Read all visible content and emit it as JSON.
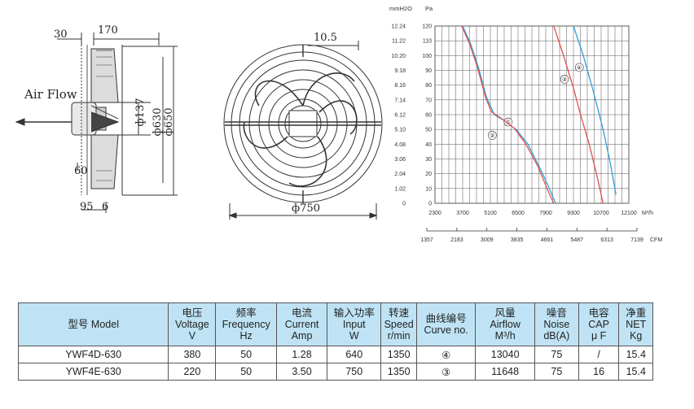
{
  "drawing": {
    "side_view": {
      "dims": [
        "30",
        "170",
        "Air Flow",
        "ф137",
        "ф630",
        "ф650",
        "60",
        "95",
        "6"
      ]
    },
    "front_view": {
      "dims": [
        "10.5",
        "ф750"
      ]
    }
  },
  "chart_data": {
    "type": "line",
    "y_mmh2o_label": "mmH2O",
    "y_pa_label": "Pa",
    "x_m3h_unit": "M³/h",
    "x_cfm_unit": "CFM",
    "y_mmh2o_ticks": [
      "12.24",
      "11.22",
      "10.20",
      "9.18",
      "8.16",
      "7.14",
      "6.12",
      "5.10",
      "4.08",
      "3.06",
      "2.04",
      "1.02",
      "0"
    ],
    "y_pa_ticks": [
      "120",
      "110",
      "100",
      "90",
      "80",
      "70",
      "60",
      "50",
      "40",
      "30",
      "20",
      "10",
      "0"
    ],
    "x_m3h_ticks": [
      "2300",
      "3700",
      "5100",
      "6500",
      "7900",
      "9300",
      "10700",
      "12100"
    ],
    "x_cfm_ticks": [
      "1357",
      "2183",
      "3009",
      "3835",
      "4661",
      "5487",
      "6313",
      "7139"
    ],
    "xlim": [
      2300,
      12100
    ],
    "ylim": [
      0,
      120
    ],
    "series": [
      {
        "name": "①",
        "color": "#2f9fd6",
        "x": [
          3700,
          4100,
          4500,
          4900,
          5300,
          5800,
          6400,
          7000,
          7600,
          8150,
          8400
        ],
        "y": [
          120,
          108,
          92,
          72,
          60,
          56,
          50,
          40,
          24,
          8,
          0
        ]
      },
      {
        "name": "②",
        "color": "#e2504c",
        "x": [
          3650,
          4050,
          4450,
          4850,
          5150,
          5600,
          6300,
          6900,
          7500,
          8000,
          8300
        ],
        "y": [
          120,
          108,
          92,
          72,
          62,
          58,
          51,
          40,
          25,
          9,
          0
        ]
      },
      {
        "name": "③",
        "color": "#e2504c",
        "x": [
          8300,
          8800,
          9300,
          9700,
          10100,
          10500,
          10800
        ],
        "y": [
          120,
          100,
          78,
          58,
          40,
          18,
          0
        ]
      },
      {
        "name": "④",
        "color": "#2f9fd6",
        "x": [
          9300,
          9800,
          10300,
          10800,
          11150,
          11450
        ],
        "y": [
          120,
          100,
          76,
          50,
          28,
          6
        ]
      }
    ],
    "curve_markers": [
      "①",
      "②",
      "③",
      "④"
    ]
  },
  "table": {
    "headers": [
      {
        "cn": "型号",
        "en": "Model",
        "unit": ""
      },
      {
        "cn": "电压",
        "en": "Voltage",
        "unit": "V"
      },
      {
        "cn": "频率",
        "en": "Frequency",
        "unit": "Hz"
      },
      {
        "cn": "电流",
        "en": "Current",
        "unit": "Amp"
      },
      {
        "cn": "输入功率",
        "en": "Input",
        "unit": "W"
      },
      {
        "cn": "转速",
        "en": "Speed",
        "unit": "r/min"
      },
      {
        "cn": "曲线编号",
        "en": "Curve no.",
        "unit": ""
      },
      {
        "cn": "风量",
        "en": "Airflow",
        "unit": "M³/h"
      },
      {
        "cn": "噪音",
        "en": "Noise",
        "unit": "dB(A)"
      },
      {
        "cn": "电容",
        "en": "CAP",
        "unit": "μ F"
      },
      {
        "cn": "净重",
        "en": "NET",
        "unit": "Kg"
      }
    ],
    "rows": [
      [
        "YWF4D-630",
        "380",
        "50",
        "1.28",
        "640",
        "1350",
        "④",
        "13040",
        "75",
        "/",
        "15.4"
      ],
      [
        "YWF4E-630",
        "220",
        "50",
        "3.50",
        "750",
        "1350",
        "③",
        "11648",
        "75",
        "16",
        "15.4"
      ]
    ]
  }
}
